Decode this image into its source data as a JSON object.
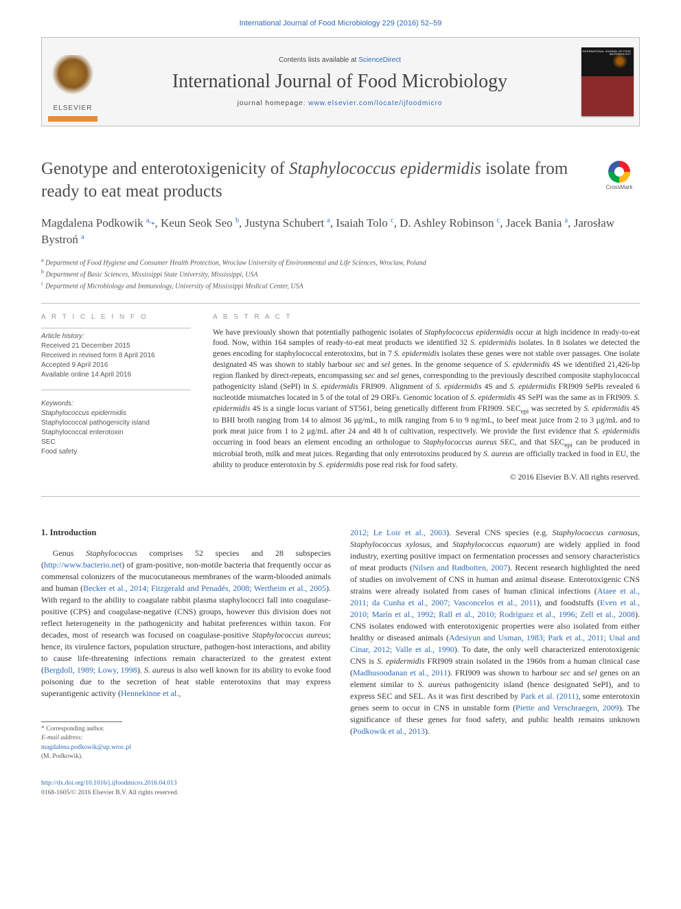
{
  "header": {
    "top_citation": "International Journal of Food Microbiology 229 (2016) 52–59",
    "contents_line_pre": "Contents lists available at ",
    "contents_line_link": "ScienceDirect",
    "journal_title": "International Journal of Food Microbiology",
    "homepage_pre": "journal homepage: ",
    "homepage_link": "www.elsevier.com/locate/ijfoodmicro",
    "publisher": "ELSEVIER",
    "cover_label": "INTERNATIONAL JOURNAL OF FOOD MICROBIOLOGY"
  },
  "crossmark": {
    "label": "CrossMark"
  },
  "article": {
    "title_html": "Genotype and enterotoxigenicity of <em>Staphylococcus epidermidis</em> isolate from ready to eat meat products",
    "authors_html": "Magdalena Podkowik <sup>a,</sup><span class='sym'>*</span>, Keun Seok Seo <sup>b</sup>, Justyna Schubert <sup>a</sup>, Isaiah Tolo <sup>c</sup>, D. Ashley Robinson <sup>c</sup>, Jacek Bania <sup>a</sup>, Jarosław Bystroń <sup>a</sup>",
    "affiliations": [
      "a Department of Food Hygiene and Consumer Health Protection, Wroclaw University of Environmental and Life Sciences, Wroclaw, Poland",
      "b Department of Basic Sciences, Mississippi State University, Mississippi, USA",
      "c Department of Microbiology and Immunology, University of Mississippi Medical Center, USA"
    ]
  },
  "article_info": {
    "heading": "A R T I C L E    I N F O",
    "history_heading": "Article history:",
    "history": [
      "Received 21 December 2015",
      "Received in revised form 8 April 2016",
      "Accepted 9 April 2016",
      "Available online 14 April 2016"
    ],
    "keywords_heading": "Keywords:",
    "keywords": [
      "<em>Staphylococcus epidermidis</em>",
      "Staphylococcal pathogenicity island",
      "Staphylococcal enterotoxin",
      "SEC",
      "Food safety"
    ]
  },
  "abstract": {
    "heading": "A B S T R A C T",
    "text_html": "We have previously shown that potentially pathogenic isolates of <em>Staphylococcus epidermidis</em> occur at high incidence in ready-to-eat food. Now, within 164 samples of ready-to-eat meat products we identified 32 <em>S. epidermidis</em> isolates. In 8 isolates we detected the genes encoding for staphylococcal enterotoxins, but in 7 <em>S. epidermidis</em> isolates these genes were not stable over passages. One isolate designated 4S was shown to stably harbour <em>sec</em> and <em>sel</em> genes. In the genome sequence of <em>S. epidermidis</em> 4S we identified 21,426-bp region flanked by direct-repeats, encompassing <em>sec</em> and <em>sel</em> genes, corresponding to the previously described composite staphylococcal pathogenicity island (SePI) in <em>S. epidermidis</em> FRI909. Alignment of <em>S. epidermidis</em> 4S and <em>S. epidermidis</em> FRI909 SePIs revealed 6 nucleotide mismatches located in 5 of the total of 29 ORFs. Genomic location of <em>S. epidermidis</em> 4S SePI was the same as in FRI909. <em>S. epidermidis</em> 4S is a single locus variant of ST561, being genetically different from FRI909. SEC<sub>epi</sub> was secreted by <em>S. epidermidis</em> 4S to BHI broth ranging from 14 to almost 36 μg/mL, to milk ranging from 6 to 9 ng/mL, to beef meat juice from 2 to 3 μg/mL and to pork meat juice from 1 to 2 μg/mL after 24 and 48 h of cultivation, respectively. We provide the first evidence that <em>S. epidermidis</em> occurring in food bears an element encoding an orthologue to <em>Staphylococcus aureus</em> SEC, and that SEC<sub>epi</sub> can be produced in microbial broth, milk and meat juices. Regarding that only enterotoxins produced by <em>S. aureus</em> are officially tracked in food in EU, the ability to produce enterotoxin by <em>S. epidermidis</em> pose real risk for food safety.",
    "copyright": "© 2016 Elsevier B.V. All rights reserved."
  },
  "body": {
    "intro_heading": "1. Introduction",
    "left_html": "Genus <em>Staphylococcus</em> comprises 52 species and 28 subspecies (<a class='link' href='#'>http://www.bacterio.net</a>) of gram-positive, non-motile bacteria that frequently occur as commensal colonizers of the mucocutaneous membranes of the warm-blooded animals and human (<a class='link' href='#'>Becker et al., 2014; Fitzgerald and Penadés, 2008; Wertheim et al., 2005</a>). With regard to the ability to coagulate rabbit plasma staphylococci fall into coagulase-positive (CPS) and coagulase-negative (CNS) groups, however this division does not reflect heterogeneity in the pathogenicity and habitat preferences within taxon. For decades, most of research was focused on coagulase-positive <em>Staphylococcus aureus</em>; hence, its virulence factors, population structure, pathogen-host interactions, and ability to cause life-threatening infections remain characterized to the greatest extent (<a class='link' href='#'>Bergdoll, 1989; Lowy, 1998</a>). <em>S. aureus</em> is also well known for its ability to evoke food poisoning due to the secretion of heat stable enterotoxins that may express superantigenic activity (<a class='link' href='#'>Hennekinne et al.,</a>",
    "right_html": "<a class='link' href='#'>2012; Le Loir et al., 2003</a>). Several CNS species (e.g. <em>Staphylococcus carnosus</em>, <em>Staphylococcus xylosus</em>, and <em>Staphylococcus equorum</em>) are widely applied in food industry, exerting positive impact on fermentation processes and sensory characteristics of meat products (<a class='link' href='#'>Nilsen and Rødbotten, 2007</a>). Recent research highlighted the need of studies on involvement of CNS in human and animal disease. Enterotoxigenic CNS strains were already isolated from cases of human clinical infections (<a class='link' href='#'>Ataee et al., 2011; da Cunha et al., 2007; Vasconcelos et al., 2011</a>), and foodstuffs (<a class='link' href='#'>Even et al., 2010; Marín et al., 1992; Rall et al., 2010; Rodríguez et al., 1996; Zell et al., 2008</a>). CNS isolates endowed with enterotoxigenic properties were also isolated from either healthy or diseased animals (<a class='link' href='#'>Adesiyun and Usman, 1983; Park et al., 2011; Unal and Cinar, 2012; Valle et al., 1990</a>). To date, the only well characterized enterotoxigenic CNS is <em>S. epidermidis</em> FRI909 strain isolated in the 1960s from a human clinical case (<a class='link' href='#'>Madhusoodanan et al., 2011</a>). FRI909 was shown to harbour <em>sec</em> and <em>sel</em> genes on an element similar to <em>S. aureus</em> pathogenicity island (hence designated SePI), and to express SEC and SEL. As it was first described by <a class='link' href='#'>Park et al. (2011)</a>, some enterotoxin genes seem to occur in CNS in unstable form (<a class='link' href='#'>Piette and Verschraegen, 2009</a>). The significance of these genes for food safety, and public health remains unknown (<a class='link' href='#'>Podkowik et al., 2013</a>)."
  },
  "footnotes": {
    "corr": "* Corresponding author.",
    "email_pre": "E-mail address: ",
    "email": "magdalena.podkowik@up.wroc.pl",
    "email_post": " (M. Podkowik)."
  },
  "footer": {
    "doi": "http://dx.doi.org/10.1016/j.ijfoodmicro.2016.04.013",
    "issn_line": "0168-1605/© 2016 Elsevier B.V. All rights reserved."
  },
  "colors": {
    "link": "#2a6ab5",
    "rule": "#bdbdbd",
    "text": "#333333",
    "muted": "#555555",
    "orange": "#e98c2e"
  }
}
